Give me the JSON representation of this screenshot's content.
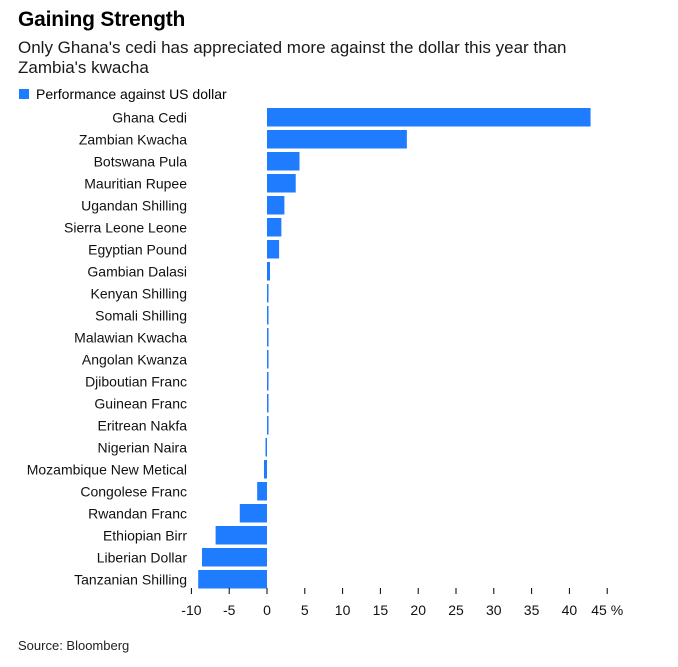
{
  "header": {
    "title": "Gaining Strength",
    "subtitle": "Only Ghana's cedi has appreciated more against the dollar this year than Zambia's kwacha"
  },
  "legend": {
    "label": "Performance against US dollar"
  },
  "footer": {
    "source": "Source: Bloomberg"
  },
  "colors": {
    "bar": "#1f7cff",
    "axis": "#000000"
  },
  "chart_data": {
    "type": "bar",
    "orientation": "horizontal",
    "title": "Gaining Strength",
    "subtitle": "Only Ghana's cedi has appreciated more against the dollar this year than Zambia's kwacha",
    "series": [
      {
        "name": "Performance against US dollar",
        "values": [
          42.8,
          18.5,
          4.3,
          3.8,
          2.3,
          1.9,
          1.6,
          0.4,
          0.2,
          0.2,
          0.2,
          0.2,
          0.2,
          0.2,
          0.2,
          -0.2,
          -0.4,
          -1.3,
          -3.6,
          -6.8,
          -8.6,
          -9.1
        ]
      }
    ],
    "categories": [
      "Ghana Cedi",
      "Zambian Kwacha",
      "Botswana Pula",
      "Mauritian Rupee",
      "Ugandan Shilling",
      "Sierra Leone Leone",
      "Egyptian Pound",
      "Gambian Dalasi",
      "Kenyan Shilling",
      "Somali Shilling",
      "Malawian Kwacha",
      "Angolan Kwanza",
      "Djiboutian Franc",
      "Guinean Franc",
      "Eritrean Nakfa",
      "Nigerian Naira",
      "Mozambique New Metical",
      "Congolese Franc",
      "Rwandan Franc",
      "Ethiopian Birr",
      "Liberian Dollar",
      "Tanzanian Shilling"
    ],
    "xlim": [
      -10,
      45
    ],
    "xticks": [
      -10,
      -5,
      0,
      5,
      10,
      15,
      20,
      25,
      30,
      35,
      40,
      45
    ],
    "xtick_labels": [
      "-10",
      "-5",
      "0",
      "5",
      "10",
      "15",
      "20",
      "25",
      "30",
      "35",
      "40",
      "45 %"
    ],
    "xlabel": "",
    "ylabel": "",
    "legend_position": "top-left",
    "grid": false
  }
}
